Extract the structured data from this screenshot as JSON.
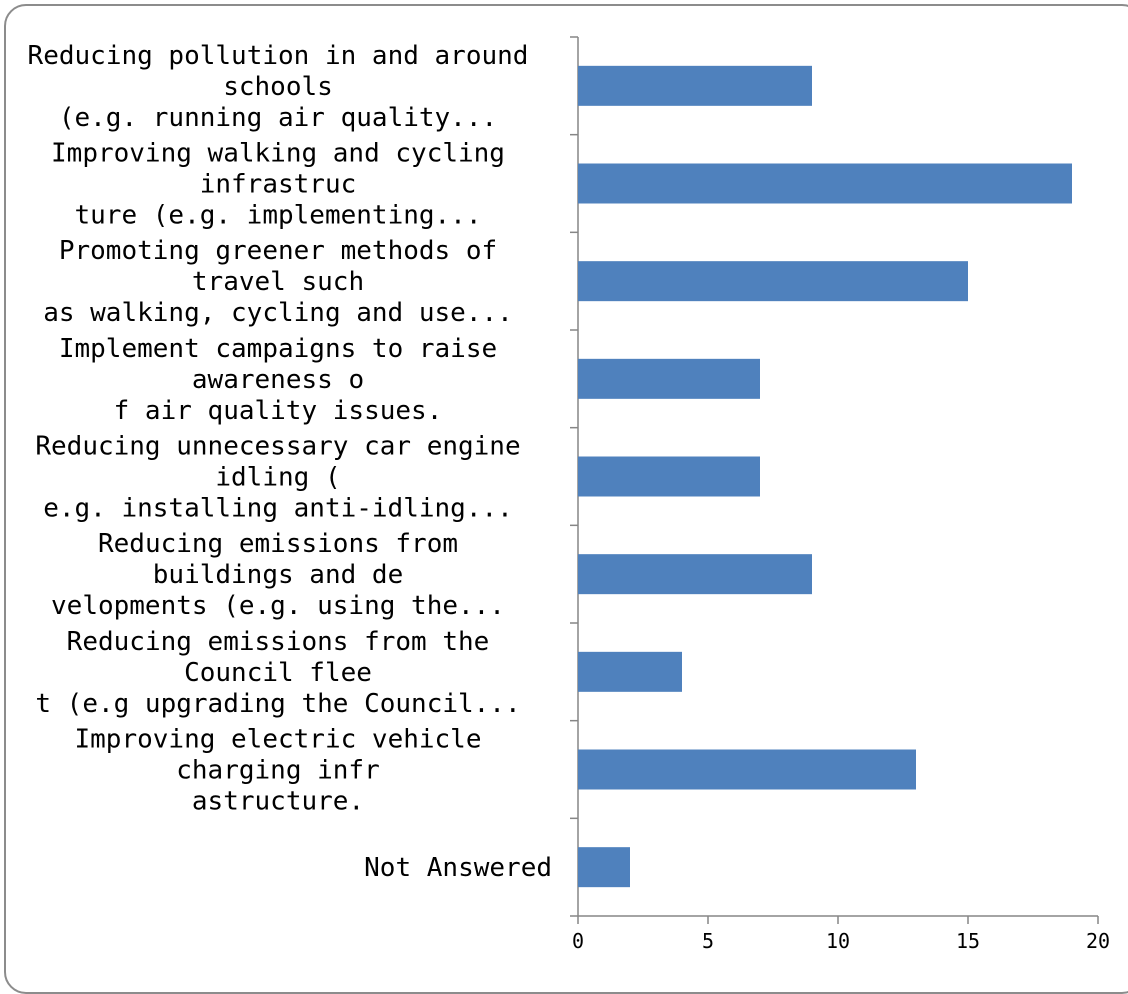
{
  "chart_data": {
    "type": "bar",
    "orientation": "horizontal",
    "categories": [
      [
        "Reducing pollution in and around",
        "schools",
        "(e.g. running air quality..."
      ],
      [
        "Improving walking and cycling",
        "infrastruc",
        "ture (e.g. implementing..."
      ],
      [
        "Promoting greener methods of",
        "travel such",
        "as walking, cycling and use..."
      ],
      [
        "Implement campaigns to raise",
        "awareness o",
        "f air quality issues."
      ],
      [
        "Reducing unnecessary car engine",
        "idling (",
        "e.g. installing anti-idling..."
      ],
      [
        "Reducing emissions from",
        "buildings and de",
        "velopments (e.g. using the..."
      ],
      [
        "Reducing emissions from the",
        "Council flee",
        "t (e.g upgrading the Council..."
      ],
      [
        "Improving electric vehicle",
        "charging infr",
        "astructure."
      ],
      [
        "Not Answered"
      ]
    ],
    "values": [
      9,
      19,
      15,
      7,
      7,
      9,
      4,
      13,
      2
    ],
    "xlim": [
      0,
      20
    ],
    "xticks": [
      "0",
      "5",
      "10",
      "15",
      "20"
    ],
    "bar_color": "#4f81bd",
    "grid": false,
    "legend": "none"
  }
}
